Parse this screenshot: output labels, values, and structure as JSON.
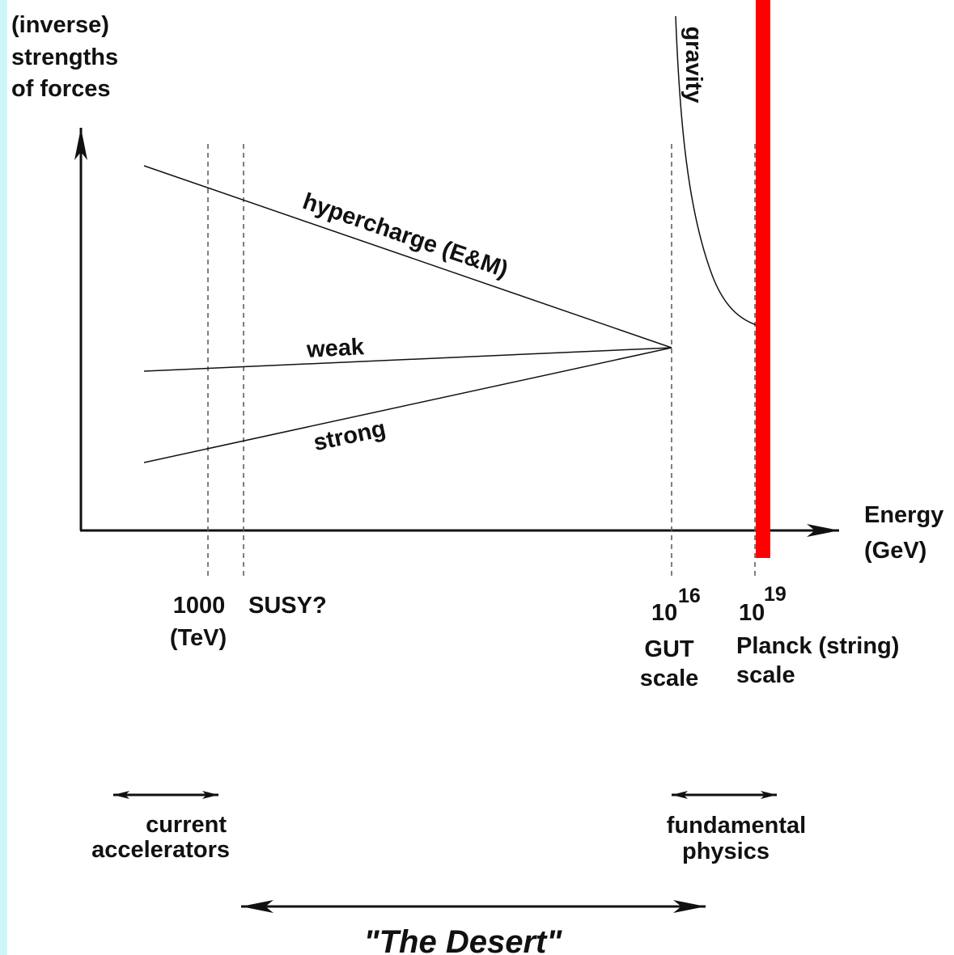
{
  "y_axis_label": [
    "(inverse)",
    "strengths",
    "of forces"
  ],
  "x_axis_label": [
    "Energy",
    "(GeV)"
  ],
  "forces": {
    "hypercharge": "hypercharge (E&M)",
    "weak": "weak",
    "strong": "strong",
    "gravity": "gravity"
  },
  "scales": {
    "tev": {
      "value": "1000",
      "unit": "(TeV)",
      "susy": "SUSY?"
    },
    "gut": {
      "base": "10",
      "exponent": "16",
      "name": [
        "GUT",
        "scale"
      ]
    },
    "planck": {
      "base": "10",
      "exponent": "19",
      "name": [
        "Planck (string)",
        "scale"
      ]
    }
  },
  "ranges": {
    "current": [
      "current",
      "accelerators"
    ],
    "fundamental": [
      "fundamental",
      "physics"
    ],
    "desert": "\"The Desert\""
  }
}
